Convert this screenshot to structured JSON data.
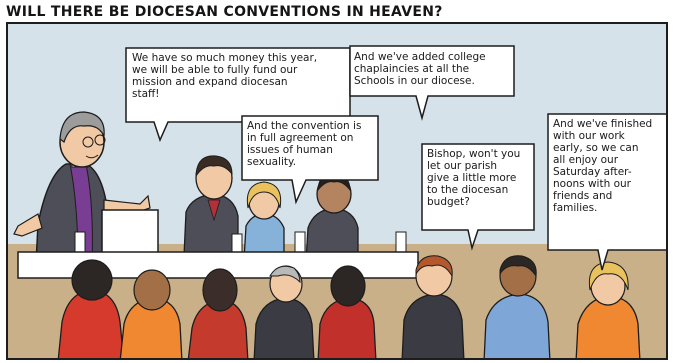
{
  "title": "WILL THERE BE DIOCESAN CONVENTIONS IN HEAVEN?",
  "bubbles": {
    "money": "We have so much money this year,\nwe will be able to fully fund our\nmission and expand diocesan\nstaff!",
    "chaplaincies": "And we've added college\nchaplaincies at all the\nSchools in our diocese.",
    "convention": "And the convention is\nin full agreement on\nissues of human\nsexuality.",
    "parish": "Bishop, won't you\nlet our parish\ngive a little more\nto the diocesan\nbudget?",
    "finished": "And we've finished\nwith our work\nearly, so we can\nall enjoy our\nSaturday after-\nnoons with our\nfriends and\nfamilies."
  },
  "colors": {
    "wall": "#d6e2ea",
    "floor": "#c9b089",
    "bishop_shirt": "#7a3d94",
    "table": "#ffffff",
    "speech_bubble": "#ffffff"
  }
}
